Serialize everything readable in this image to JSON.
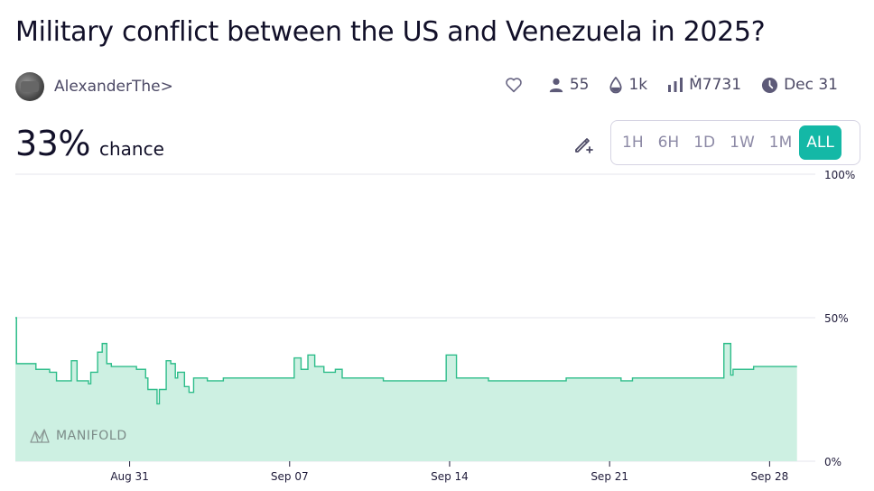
{
  "market": {
    "title": "Military conflict between the US and Venezuela in 2025?",
    "author": "AlexanderThe>",
    "stats": {
      "traders": "55",
      "liquidity": "1k",
      "volume": "Ṁ7731",
      "close_date": "Dec 31"
    },
    "probability": "33%",
    "probability_label": "chance"
  },
  "time_ranges": [
    {
      "label": "1H",
      "active": false
    },
    {
      "label": "6H",
      "active": false
    },
    {
      "label": "1D",
      "active": false
    },
    {
      "label": "1W",
      "active": false
    },
    {
      "label": "1M",
      "active": false
    },
    {
      "label": "ALL",
      "active": true
    }
  ],
  "colors": {
    "accent": "#14b8a6",
    "line": "#2ebd8a",
    "fill": "#cdf0e2"
  },
  "watermark": "MANIFOLD",
  "chart_data": {
    "type": "area",
    "step": true,
    "x_start": "Aug 26",
    "x_end": "Sep 30",
    "x_ticks": [
      "Aug 31",
      "Sep 07",
      "Sep 14",
      "Sep 21",
      "Sep 28"
    ],
    "y_ticks": [
      "0%",
      "50%",
      "100%"
    ],
    "ylim": [
      0,
      100
    ],
    "grid": true,
    "series": [
      {
        "points": [
          [
            0,
            50
          ],
          [
            0.05,
            34
          ],
          [
            0.5,
            34
          ],
          [
            0.9,
            32
          ],
          [
            1.5,
            31
          ],
          [
            1.8,
            28
          ],
          [
            2.3,
            28
          ],
          [
            2.45,
            35
          ],
          [
            2.7,
            28
          ],
          [
            3.2,
            27
          ],
          [
            3.3,
            31
          ],
          [
            3.6,
            38
          ],
          [
            3.8,
            41
          ],
          [
            4.0,
            34
          ],
          [
            4.2,
            33
          ],
          [
            5.3,
            32
          ],
          [
            5.7,
            29
          ],
          [
            5.8,
            25
          ],
          [
            6.2,
            20
          ],
          [
            6.3,
            25
          ],
          [
            6.6,
            35
          ],
          [
            6.8,
            34
          ],
          [
            7.0,
            29
          ],
          [
            7.1,
            31
          ],
          [
            7.4,
            26
          ],
          [
            7.6,
            24
          ],
          [
            7.8,
            29
          ],
          [
            8.4,
            28
          ],
          [
            9.1,
            29
          ],
          [
            12.1,
            29
          ],
          [
            12.2,
            36
          ],
          [
            12.5,
            32
          ],
          [
            12.8,
            37
          ],
          [
            13.1,
            33
          ],
          [
            13.5,
            31
          ],
          [
            14.0,
            32
          ],
          [
            14.3,
            29
          ],
          [
            15.7,
            29
          ],
          [
            16.1,
            28
          ],
          [
            18.8,
            28
          ],
          [
            18.85,
            37
          ],
          [
            19.3,
            29
          ],
          [
            20.7,
            28
          ],
          [
            24.0,
            28
          ],
          [
            24.1,
            29
          ],
          [
            26.3,
            29
          ],
          [
            26.5,
            28
          ],
          [
            27.0,
            29
          ],
          [
            28.1,
            29
          ],
          [
            30.9,
            29
          ],
          [
            31.0,
            41
          ],
          [
            31.3,
            30
          ],
          [
            31.4,
            32
          ],
          [
            32.2,
            32
          ],
          [
            32.3,
            33
          ],
          [
            34.2,
            33
          ]
        ]
      }
    ]
  }
}
